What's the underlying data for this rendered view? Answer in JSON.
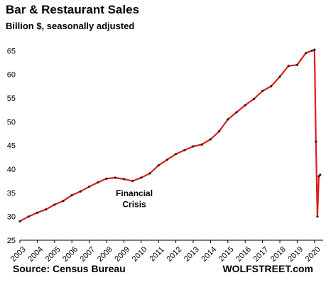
{
  "chart_data": {
    "type": "line",
    "title": "Bar & Restaurant Sales",
    "subtitle": "Billion $, seasonally adjusted",
    "xlabel": "",
    "ylabel": "",
    "xlim": [
      2003,
      2020.5
    ],
    "ylim": [
      25,
      67
    ],
    "yticks": [
      25,
      30,
      35,
      40,
      45,
      50,
      55,
      60,
      65
    ],
    "xticks": [
      "2003",
      "2004",
      "2005",
      "2006",
      "2007",
      "2008",
      "2009",
      "2010",
      "2011",
      "2012",
      "2013",
      "2014",
      "2015",
      "2016",
      "2017",
      "2018",
      "2019",
      "2020"
    ],
    "grid": false,
    "line_color": "#e01b1b",
    "marker_color": "#222222",
    "annotations": [
      {
        "text": "Financial",
        "x": 2009.6,
        "y": 34.3
      },
      {
        "text": "Crisis",
        "x": 2009.6,
        "y": 32.0
      }
    ],
    "series": [
      {
        "x": [
          2003.0,
          2003.5,
          2004.0,
          2004.5,
          2005.0,
          2005.5,
          2006.0,
          2006.5,
          2007.0,
          2007.5,
          2008.0,
          2008.5,
          2009.0,
          2009.5,
          2010.0,
          2010.5,
          2011.0,
          2011.5,
          2012.0,
          2012.5,
          2013.0,
          2013.5,
          2014.0,
          2014.5,
          2015.0,
          2015.5,
          2016.0,
          2016.5,
          2017.0,
          2017.5,
          2018.0,
          2018.5,
          2019.0,
          2019.5,
          2019.85,
          2020.0,
          2020.08,
          2020.17,
          2020.25,
          2020.33
        ],
        "values": [
          29.0,
          30.0,
          30.8,
          31.5,
          32.5,
          33.3,
          34.5,
          35.3,
          36.3,
          37.2,
          38.0,
          38.2,
          37.9,
          37.5,
          38.2,
          39.1,
          40.8,
          42.0,
          43.2,
          44.0,
          44.8,
          45.2,
          46.3,
          48.0,
          50.5,
          52.0,
          53.5,
          54.8,
          56.5,
          57.5,
          59.5,
          61.8,
          62.0,
          64.5,
          65.0,
          65.2,
          45.8,
          30.0,
          38.5,
          38.8
        ]
      }
    ]
  },
  "source_label": "Source: Census Bureau",
  "brand_label": "WOLFSTREET.com"
}
